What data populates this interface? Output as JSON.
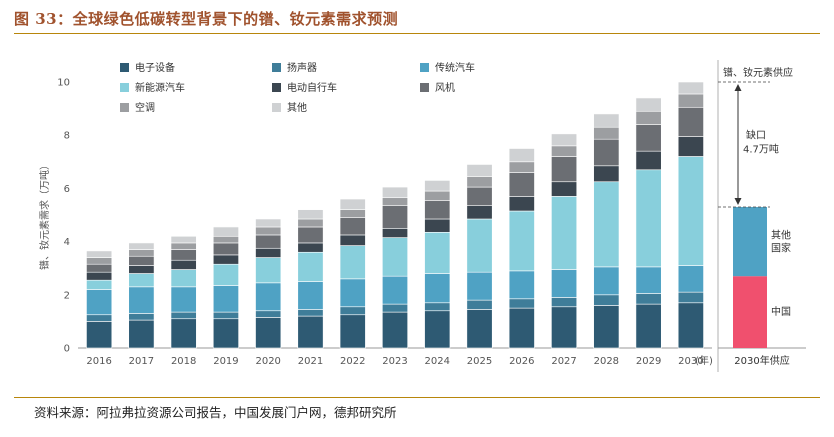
{
  "title": "图 33：全球绿色低碳转型背景下的镨、钕元素需求预测",
  "source": "资料来源：阿拉弗拉资源公司报告，中国发展门户网，德邦研究所",
  "chart_data": {
    "type": "bar",
    "stacked": true,
    "categories": [
      "2016",
      "2017",
      "2018",
      "2019",
      "2020",
      "2021",
      "2022",
      "2023",
      "2024",
      "2025",
      "2026",
      "2027",
      "2028",
      "2029",
      "2030"
    ],
    "year_unit": "(年)",
    "ylabel": "镨、钕元素需求（万吨）",
    "ylim": [
      0,
      10
    ],
    "yticks": [
      0,
      2,
      4,
      6,
      8,
      10
    ],
    "series": [
      {
        "name": "电子设备",
        "color": "#2e5a73",
        "values": [
          1.0,
          1.05,
          1.1,
          1.1,
          1.15,
          1.2,
          1.25,
          1.35,
          1.4,
          1.45,
          1.5,
          1.55,
          1.6,
          1.65,
          1.7
        ]
      },
      {
        "name": "扬声器",
        "color": "#3f7d99",
        "values": [
          0.25,
          0.25,
          0.25,
          0.25,
          0.25,
          0.25,
          0.3,
          0.3,
          0.3,
          0.35,
          0.35,
          0.35,
          0.4,
          0.4,
          0.4
        ]
      },
      {
        "name": "传统汽车",
        "color": "#4fa2c4",
        "values": [
          0.95,
          1.0,
          0.95,
          1.0,
          1.05,
          1.05,
          1.05,
          1.05,
          1.1,
          1.05,
          1.05,
          1.05,
          1.05,
          1.0,
          1.0
        ]
      },
      {
        "name": "新能源汽车",
        "color": "#88cfdc",
        "values": [
          0.35,
          0.5,
          0.65,
          0.8,
          0.95,
          1.1,
          1.25,
          1.45,
          1.55,
          2.0,
          2.25,
          2.75,
          3.2,
          3.65,
          4.1
        ]
      },
      {
        "name": "电动自行车",
        "color": "#3b4650",
        "values": [
          0.3,
          0.3,
          0.35,
          0.35,
          0.35,
          0.35,
          0.4,
          0.35,
          0.5,
          0.5,
          0.55,
          0.55,
          0.6,
          0.7,
          0.75
        ]
      },
      {
        "name": "风机",
        "color": "#6b6e73",
        "values": [
          0.3,
          0.35,
          0.4,
          0.45,
          0.5,
          0.6,
          0.65,
          0.85,
          0.7,
          0.7,
          0.9,
          0.95,
          1.0,
          1.0,
          1.1
        ]
      },
      {
        "name": "空调",
        "color": "#9c9ea1",
        "values": [
          0.25,
          0.25,
          0.25,
          0.25,
          0.3,
          0.3,
          0.3,
          0.3,
          0.35,
          0.4,
          0.4,
          0.4,
          0.45,
          0.5,
          0.5
        ]
      },
      {
        "name": "其他",
        "color": "#cfd1d3",
        "values": [
          0.25,
          0.25,
          0.25,
          0.35,
          0.3,
          0.35,
          0.4,
          0.4,
          0.4,
          0.45,
          0.5,
          0.45,
          0.5,
          0.5,
          0.45
        ]
      }
    ],
    "supply_bar": {
      "label": "2030年供应",
      "segments": [
        {
          "name": "中国",
          "value": 2.7,
          "color": "#f0506e"
        },
        {
          "name": "其他国家",
          "value": 2.6,
          "color": "#4fa2c4"
        }
      ],
      "gap_label": "缺口",
      "gap_value": "4.7万吨",
      "top_label": "镨、钕元素供应",
      "demand_total": 10.0,
      "supply_total": 5.3
    }
  }
}
